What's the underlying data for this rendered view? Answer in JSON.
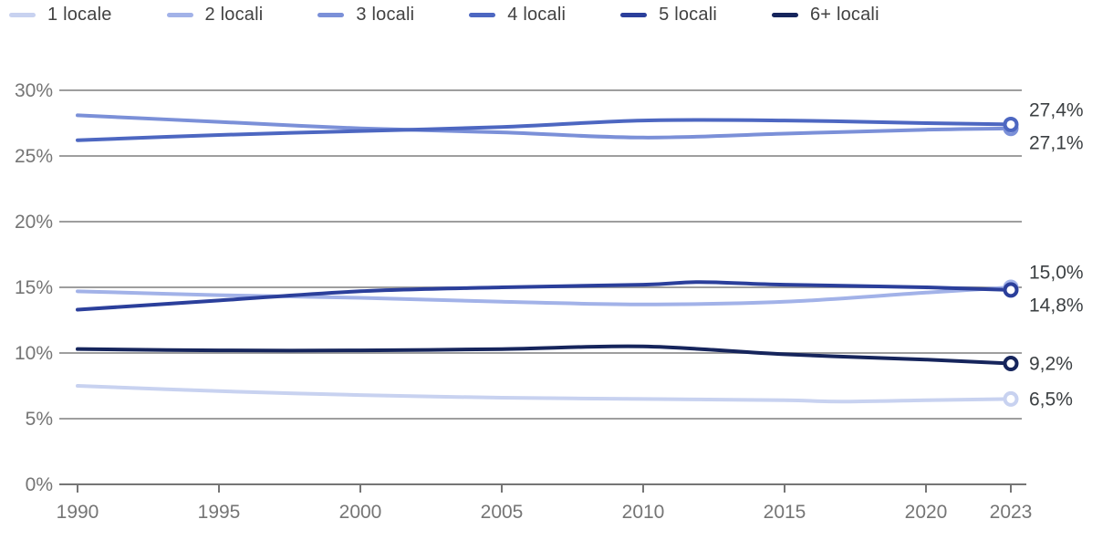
{
  "chart_data": {
    "type": "line",
    "title": "",
    "xlabel": "",
    "ylabel": "",
    "legend_position": "top",
    "grid": true,
    "xlim": [
      1990,
      2023
    ],
    "ylim": [
      0,
      30
    ],
    "x_ticks": [
      1990,
      1995,
      2000,
      2005,
      2010,
      2015,
      2020,
      2023
    ],
    "y_ticks": [
      0,
      5,
      10,
      15,
      20,
      25,
      30
    ],
    "y_tick_suffix": "%",
    "grid_color": "#9e9e9e",
    "axis_color": "#757575",
    "tick_label_color": "#757575",
    "end_label_color": "#3c4043",
    "background_color": "#ffffff",
    "series": [
      {
        "name": "1 locale",
        "color": "#c8d2f0",
        "end_label": "6,5%",
        "points": [
          [
            1990,
            7.5
          ],
          [
            1995,
            7.1
          ],
          [
            2000,
            6.8
          ],
          [
            2005,
            6.6
          ],
          [
            2010,
            6.5
          ],
          [
            2015,
            6.4
          ],
          [
            2017,
            6.3
          ],
          [
            2020,
            6.4
          ],
          [
            2023,
            6.5
          ]
        ]
      },
      {
        "name": "2 locali",
        "color": "#a2b2e8",
        "end_label": "15,0%",
        "points": [
          [
            1990,
            14.7
          ],
          [
            1995,
            14.4
          ],
          [
            2000,
            14.2
          ],
          [
            2005,
            13.9
          ],
          [
            2010,
            13.7
          ],
          [
            2015,
            13.9
          ],
          [
            2020,
            14.6
          ],
          [
            2023,
            15.0
          ]
        ]
      },
      {
        "name": "3 locali",
        "color": "#7b90d8",
        "end_label": "27,1%",
        "points": [
          [
            1990,
            28.1
          ],
          [
            1995,
            27.6
          ],
          [
            2000,
            27.1
          ],
          [
            2005,
            26.8
          ],
          [
            2010,
            26.4
          ],
          [
            2015,
            26.7
          ],
          [
            2020,
            27.0
          ],
          [
            2023,
            27.1
          ]
        ]
      },
      {
        "name": "4 locali",
        "color": "#4d67c1",
        "end_label": "27,4%",
        "points": [
          [
            1990,
            26.2
          ],
          [
            1995,
            26.6
          ],
          [
            2000,
            26.9
          ],
          [
            2005,
            27.2
          ],
          [
            2010,
            27.7
          ],
          [
            2015,
            27.7
          ],
          [
            2020,
            27.5
          ],
          [
            2023,
            27.4
          ]
        ]
      },
      {
        "name": "5 locali",
        "color": "#2b3f9b",
        "end_label": "14,8%",
        "points": [
          [
            1990,
            13.3
          ],
          [
            1995,
            14.0
          ],
          [
            2000,
            14.7
          ],
          [
            2005,
            15.0
          ],
          [
            2010,
            15.2
          ],
          [
            2012,
            15.4
          ],
          [
            2015,
            15.2
          ],
          [
            2020,
            15.0
          ],
          [
            2023,
            14.8
          ]
        ]
      },
      {
        "name": "6+ locali",
        "color": "#16255c",
        "end_label": "9,2%",
        "points": [
          [
            1990,
            10.3
          ],
          [
            1995,
            10.2
          ],
          [
            2000,
            10.2
          ],
          [
            2005,
            10.3
          ],
          [
            2010,
            10.5
          ],
          [
            2015,
            9.9
          ],
          [
            2020,
            9.5
          ],
          [
            2023,
            9.2
          ]
        ]
      }
    ]
  }
}
